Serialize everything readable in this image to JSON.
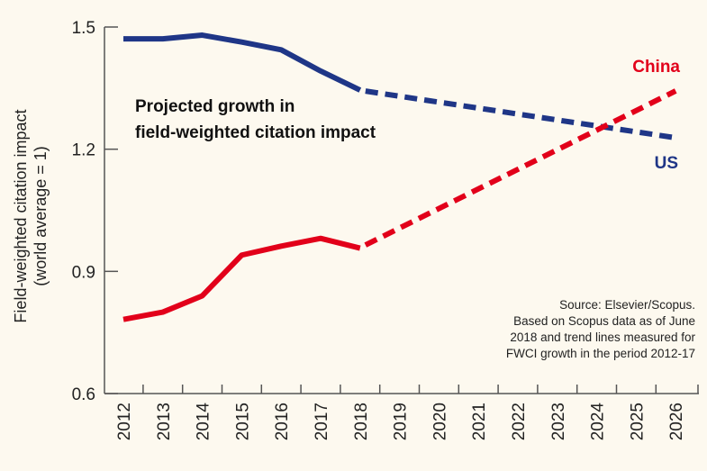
{
  "chart_data": {
    "type": "line",
    "title": "Projected growth in field-weighted citation impact",
    "title_lines": [
      "Projected growth in",
      "field-weighted citation impact"
    ],
    "ylabel_lines": [
      "Field-weighted citation impact",
      "(world average = 1)"
    ],
    "xlabel": "",
    "x": [
      2012,
      2013,
      2014,
      2015,
      2016,
      2017,
      2018,
      2019,
      2020,
      2021,
      2022,
      2023,
      2024,
      2025,
      2026
    ],
    "ylim": [
      0.6,
      1.5
    ],
    "yticks": [
      "0.6",
      "0.9",
      "1.2",
      "1.5"
    ],
    "yticks_values": [
      0.6,
      0.9,
      1.2,
      1.5
    ],
    "grid": false,
    "series": [
      {
        "name": "US",
        "color": "#1f3687",
        "actual": {
          "x": [
            2012,
            2013,
            2014,
            2015,
            2016,
            2017,
            2018
          ],
          "y": [
            1.471,
            1.471,
            1.48,
            1.463,
            1.444,
            1.392,
            1.345
          ]
        },
        "projected": {
          "x": [
            2018,
            2026
          ],
          "y": [
            1.345,
            1.228
          ]
        }
      },
      {
        "name": "China",
        "color": "#e2001a",
        "actual": {
          "x": [
            2012,
            2013,
            2014,
            2015,
            2016,
            2017,
            2018
          ],
          "y": [
            0.782,
            0.8,
            0.84,
            0.94,
            0.962,
            0.981,
            0.957
          ]
        },
        "projected": {
          "x": [
            2018,
            2026
          ],
          "y": [
            0.957,
            1.343
          ]
        }
      }
    ],
    "source_lines": [
      "Source: Elsevier/Scopus.",
      "Based on Scopus data as of June",
      "2018 and trend lines measured for",
      "FWCI growth in the period 2012-17"
    ]
  }
}
